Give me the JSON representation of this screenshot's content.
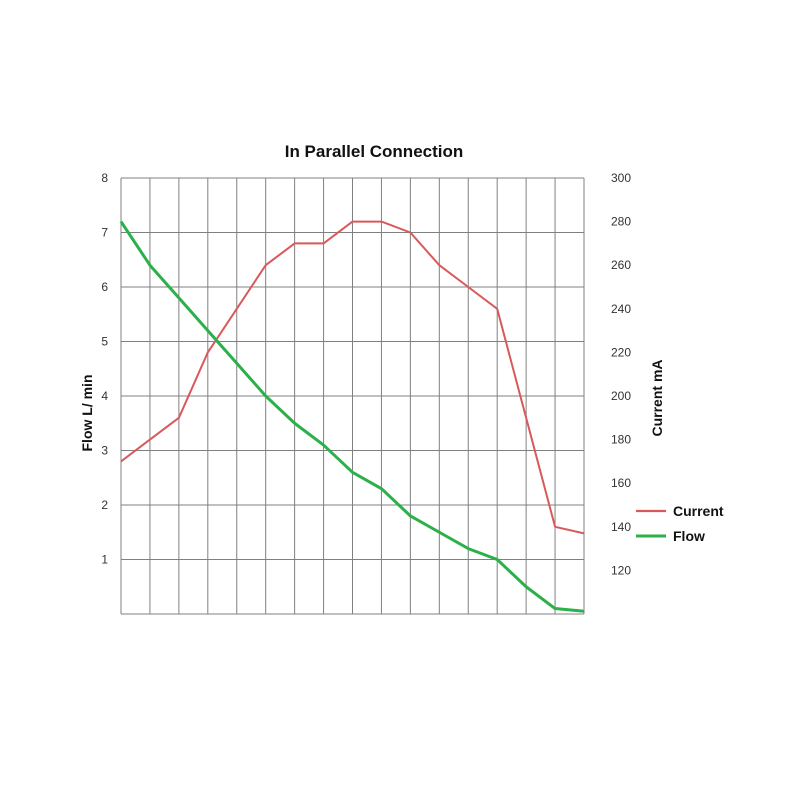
{
  "chart_data": {
    "type": "line",
    "title": "In Parallel Connection",
    "x": [
      0,
      1,
      2,
      3,
      4,
      5,
      6,
      7,
      8,
      9,
      10,
      11,
      12,
      13,
      14,
      15,
      16
    ],
    "left_axis": {
      "label": "Flow  L/ min",
      "ylim": [
        0,
        8
      ],
      "ticks": [
        "1",
        "2",
        "3",
        "4",
        "5",
        "6",
        "7",
        "8"
      ]
    },
    "right_axis": {
      "label": "Current mA",
      "ylim": [
        100,
        300
      ],
      "ticks": [
        "120",
        "140",
        "160",
        "180",
        "200",
        "220",
        "240",
        "260",
        "280",
        "300"
      ]
    },
    "grid": true,
    "legend_position": "right",
    "series": [
      {
        "name": "Current",
        "axis": "right",
        "color": "#d9595b",
        "values": [
          170,
          180,
          190,
          220,
          240,
          260,
          270,
          270,
          280,
          280,
          275,
          260,
          250,
          240,
          190,
          140,
          137
        ]
      },
      {
        "name": "Flow",
        "axis": "left",
        "color": "#2bb04a",
        "values": [
          7.2,
          6.4,
          5.8,
          5.2,
          4.6,
          4.0,
          3.5,
          3.1,
          2.6,
          2.3,
          1.8,
          1.5,
          1.2,
          1.0,
          0.5,
          0.1,
          0.05
        ]
      }
    ]
  }
}
